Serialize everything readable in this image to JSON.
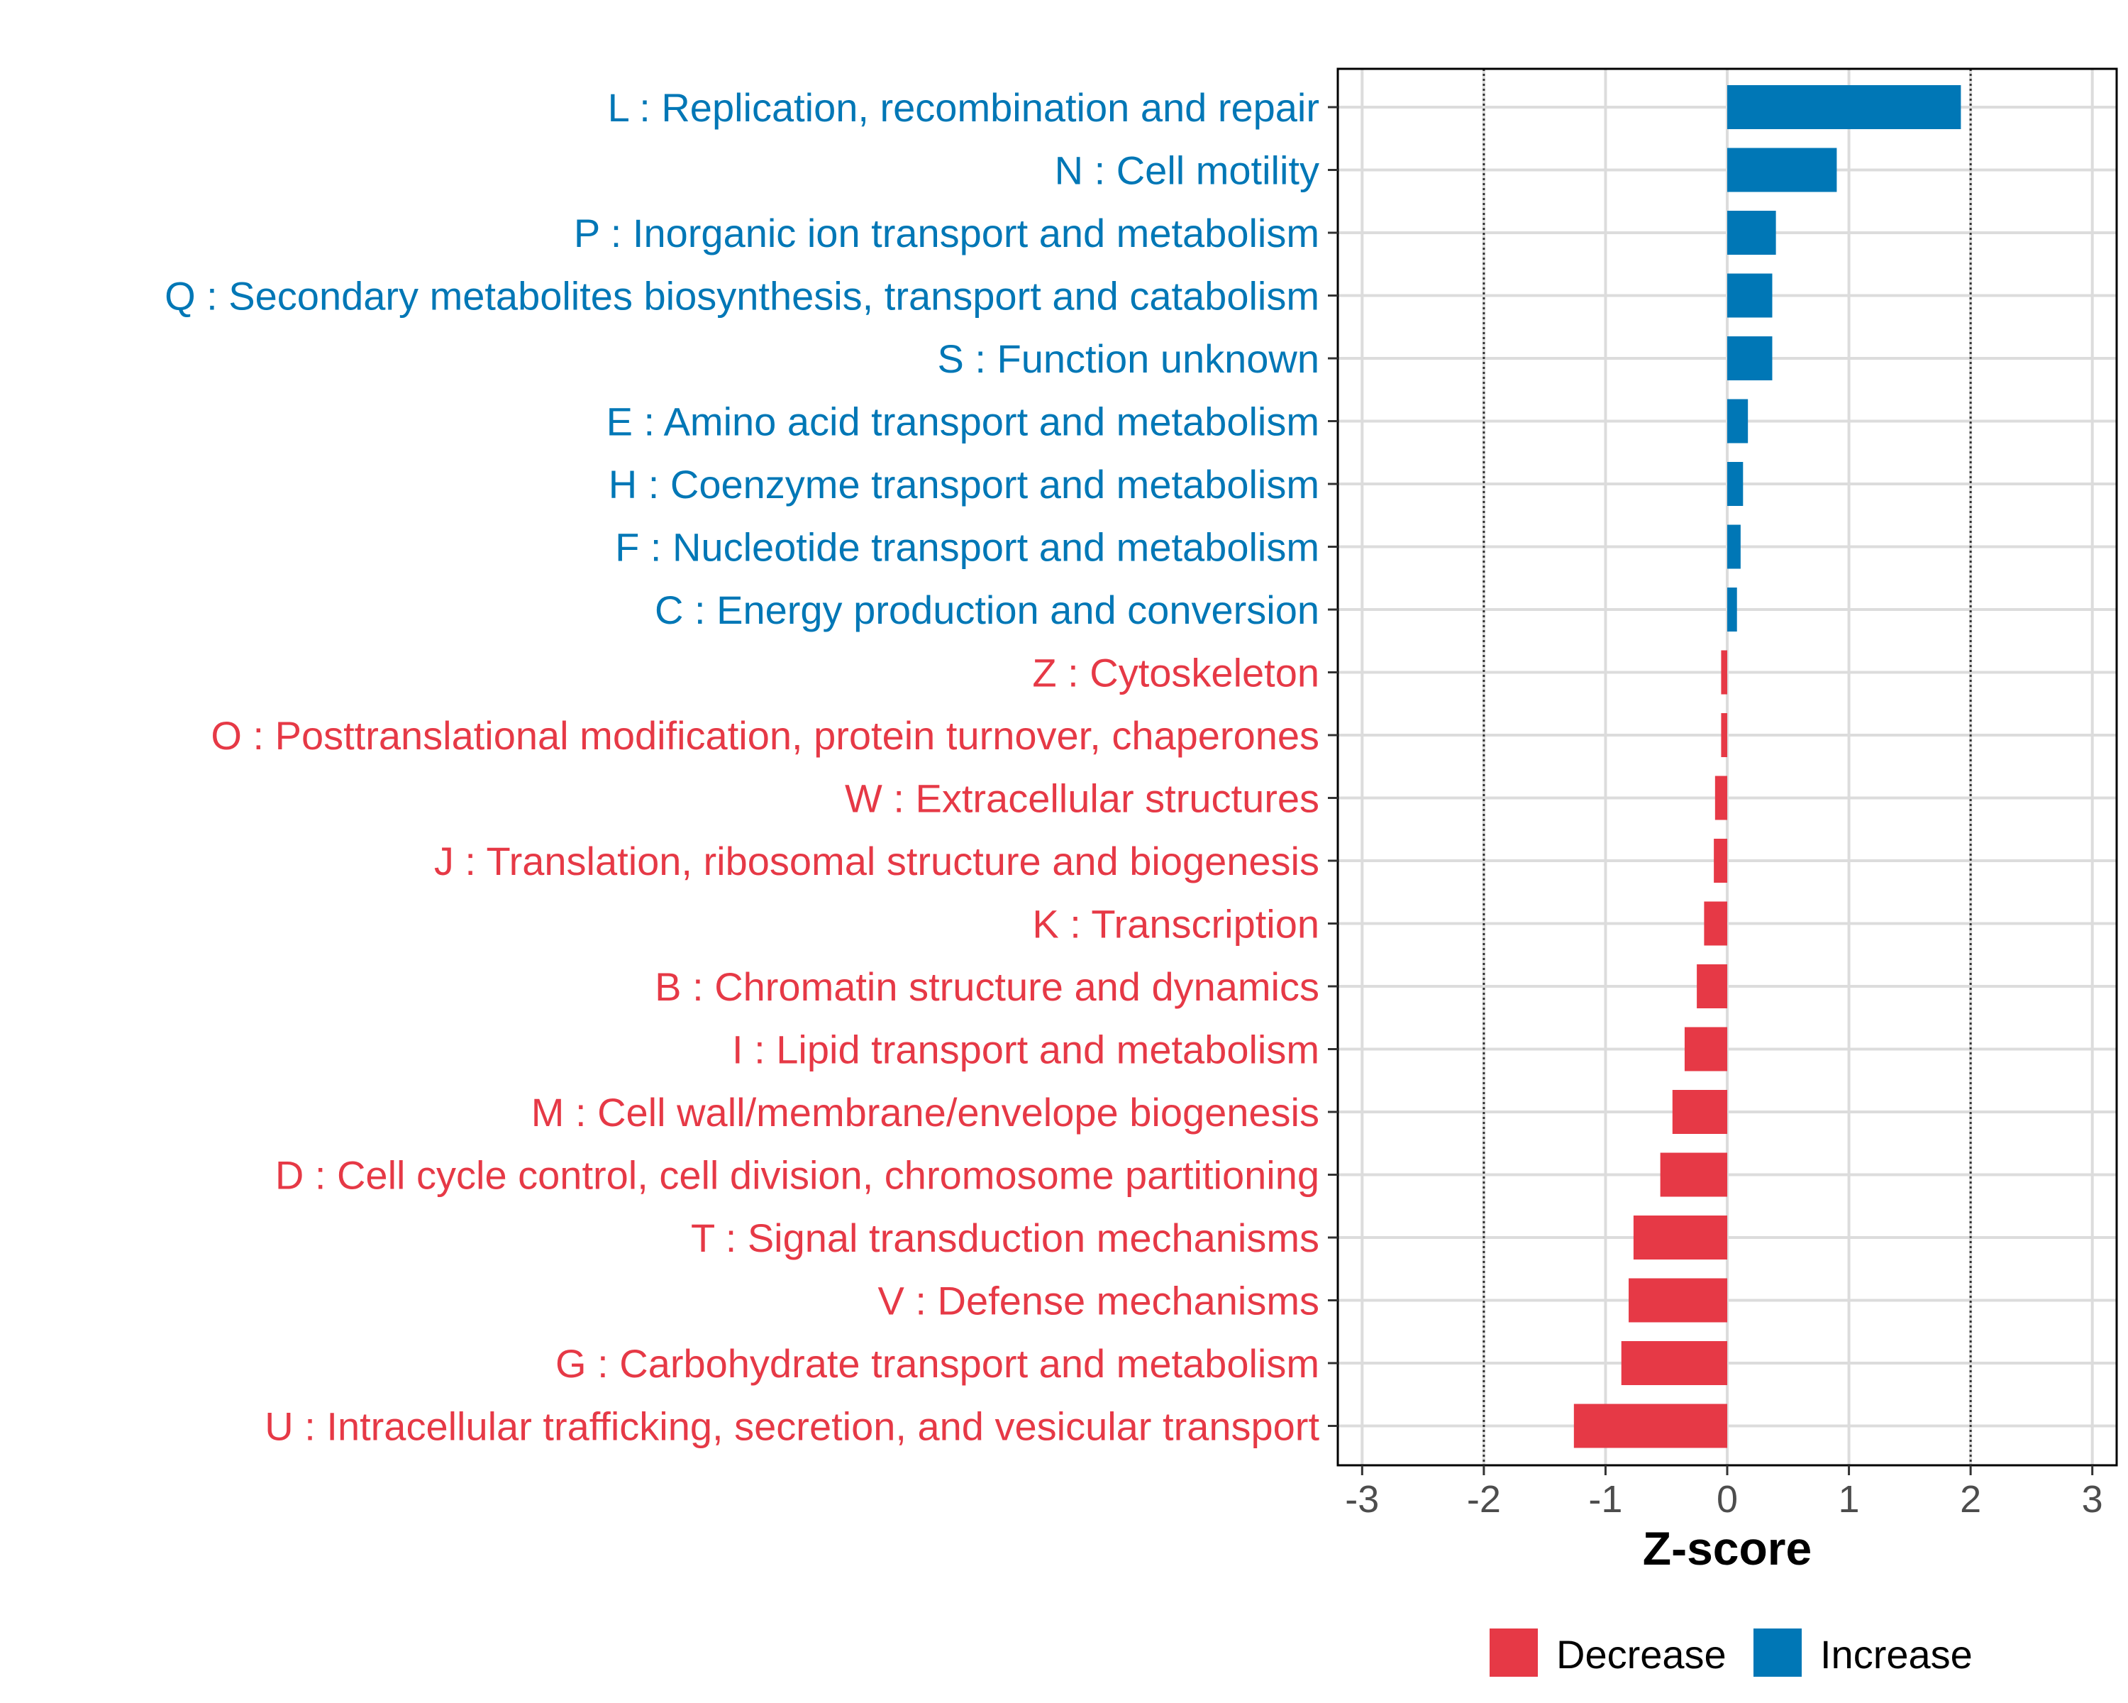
{
  "chart_data": {
    "type": "bar",
    "orientation": "horizontal",
    "xlabel": "Z-score",
    "xlim": [
      -3.2,
      3.2
    ],
    "xticks": [
      -3,
      -2,
      -1,
      0,
      1,
      2,
      3
    ],
    "xtick_labels": [
      "-3",
      "-2",
      "-1",
      "0",
      "1",
      "2",
      "3"
    ],
    "reference_lines": [
      -2,
      2
    ],
    "grid": true,
    "legend": {
      "position": "bottom",
      "entries": [
        {
          "label": "Decrease",
          "color": "#E63946"
        },
        {
          "label": "Increase",
          "color": "#0077B6"
        }
      ]
    },
    "bars": [
      {
        "label": "L : Replication, recombination and repair",
        "value": 1.92,
        "group": "Increase"
      },
      {
        "label": "N : Cell motility",
        "value": 0.9,
        "group": "Increase"
      },
      {
        "label": "P : Inorganic ion transport and metabolism",
        "value": 0.4,
        "group": "Increase"
      },
      {
        "label": "Q : Secondary metabolites biosynthesis, transport and catabolism",
        "value": 0.37,
        "group": "Increase"
      },
      {
        "label": "S : Function unknown",
        "value": 0.37,
        "group": "Increase"
      },
      {
        "label": "E : Amino acid transport and metabolism",
        "value": 0.17,
        "group": "Increase"
      },
      {
        "label": "H : Coenzyme transport and metabolism",
        "value": 0.13,
        "group": "Increase"
      },
      {
        "label": "F : Nucleotide transport and metabolism",
        "value": 0.11,
        "group": "Increase"
      },
      {
        "label": "C : Energy production and conversion",
        "value": 0.08,
        "group": "Increase"
      },
      {
        "label": "Z : Cytoskeleton",
        "value": -0.05,
        "group": "Decrease"
      },
      {
        "label": "O : Posttranslational modification, protein turnover, chaperones",
        "value": -0.05,
        "group": "Decrease"
      },
      {
        "label": "W : Extracellular structures",
        "value": -0.1,
        "group": "Decrease"
      },
      {
        "label": "J : Translation, ribosomal structure and biogenesis",
        "value": -0.11,
        "group": "Decrease"
      },
      {
        "label": "K : Transcription",
        "value": -0.19,
        "group": "Decrease"
      },
      {
        "label": "B : Chromatin structure and dynamics",
        "value": -0.25,
        "group": "Decrease"
      },
      {
        "label": "I : Lipid transport and metabolism",
        "value": -0.35,
        "group": "Decrease"
      },
      {
        "label": "M : Cell wall/membrane/envelope biogenesis",
        "value": -0.45,
        "group": "Decrease"
      },
      {
        "label": "D : Cell cycle control, cell division, chromosome partitioning",
        "value": -0.55,
        "group": "Decrease"
      },
      {
        "label": "T : Signal transduction mechanisms",
        "value": -0.77,
        "group": "Decrease"
      },
      {
        "label": "V : Defense mechanisms",
        "value": -0.81,
        "group": "Decrease"
      },
      {
        "label": "G : Carbohydrate transport and metabolism",
        "value": -0.87,
        "group": "Decrease"
      },
      {
        "label": "U : Intracellular trafficking, secretion, and vesicular transport",
        "value": -1.26,
        "group": "Decrease"
      }
    ]
  }
}
